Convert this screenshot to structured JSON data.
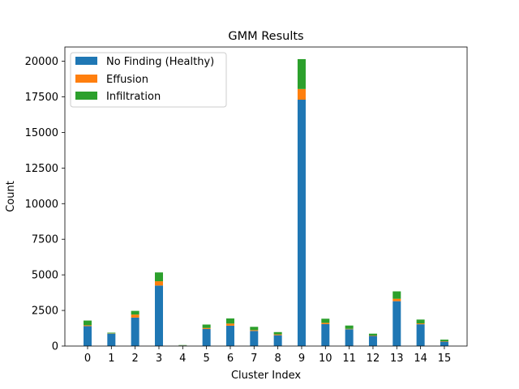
{
  "chart_data": {
    "type": "bar",
    "stacked": true,
    "title": "GMM Results",
    "xlabel": "Cluster Index",
    "ylabel": "Count",
    "categories": [
      "0",
      "1",
      "2",
      "3",
      "4",
      "5",
      "6",
      "7",
      "8",
      "9",
      "10",
      "11",
      "12",
      "13",
      "14",
      "15"
    ],
    "ylim": [
      0,
      21000
    ],
    "yticks": [
      0,
      2500,
      5000,
      7500,
      10000,
      12500,
      15000,
      17500,
      20000
    ],
    "grid": false,
    "legend_position": "top-left",
    "series": [
      {
        "name": "No Finding (Healthy)",
        "color": "#1f77b4",
        "values": [
          1400,
          870,
          2000,
          4250,
          40,
          1200,
          1430,
          1060,
          760,
          17300,
          1540,
          1180,
          710,
          3150,
          1530,
          310
        ]
      },
      {
        "name": "Effusion",
        "color": "#ff7f0e",
        "values": [
          60,
          20,
          210,
          300,
          10,
          70,
          150,
          60,
          60,
          750,
          90,
          30,
          30,
          170,
          60,
          30
        ]
      },
      {
        "name": "Infiltration",
        "color": "#2ca02c",
        "values": [
          330,
          50,
          260,
          620,
          20,
          240,
          360,
          230,
          160,
          2100,
          290,
          230,
          130,
          520,
          270,
          110
        ]
      }
    ]
  }
}
